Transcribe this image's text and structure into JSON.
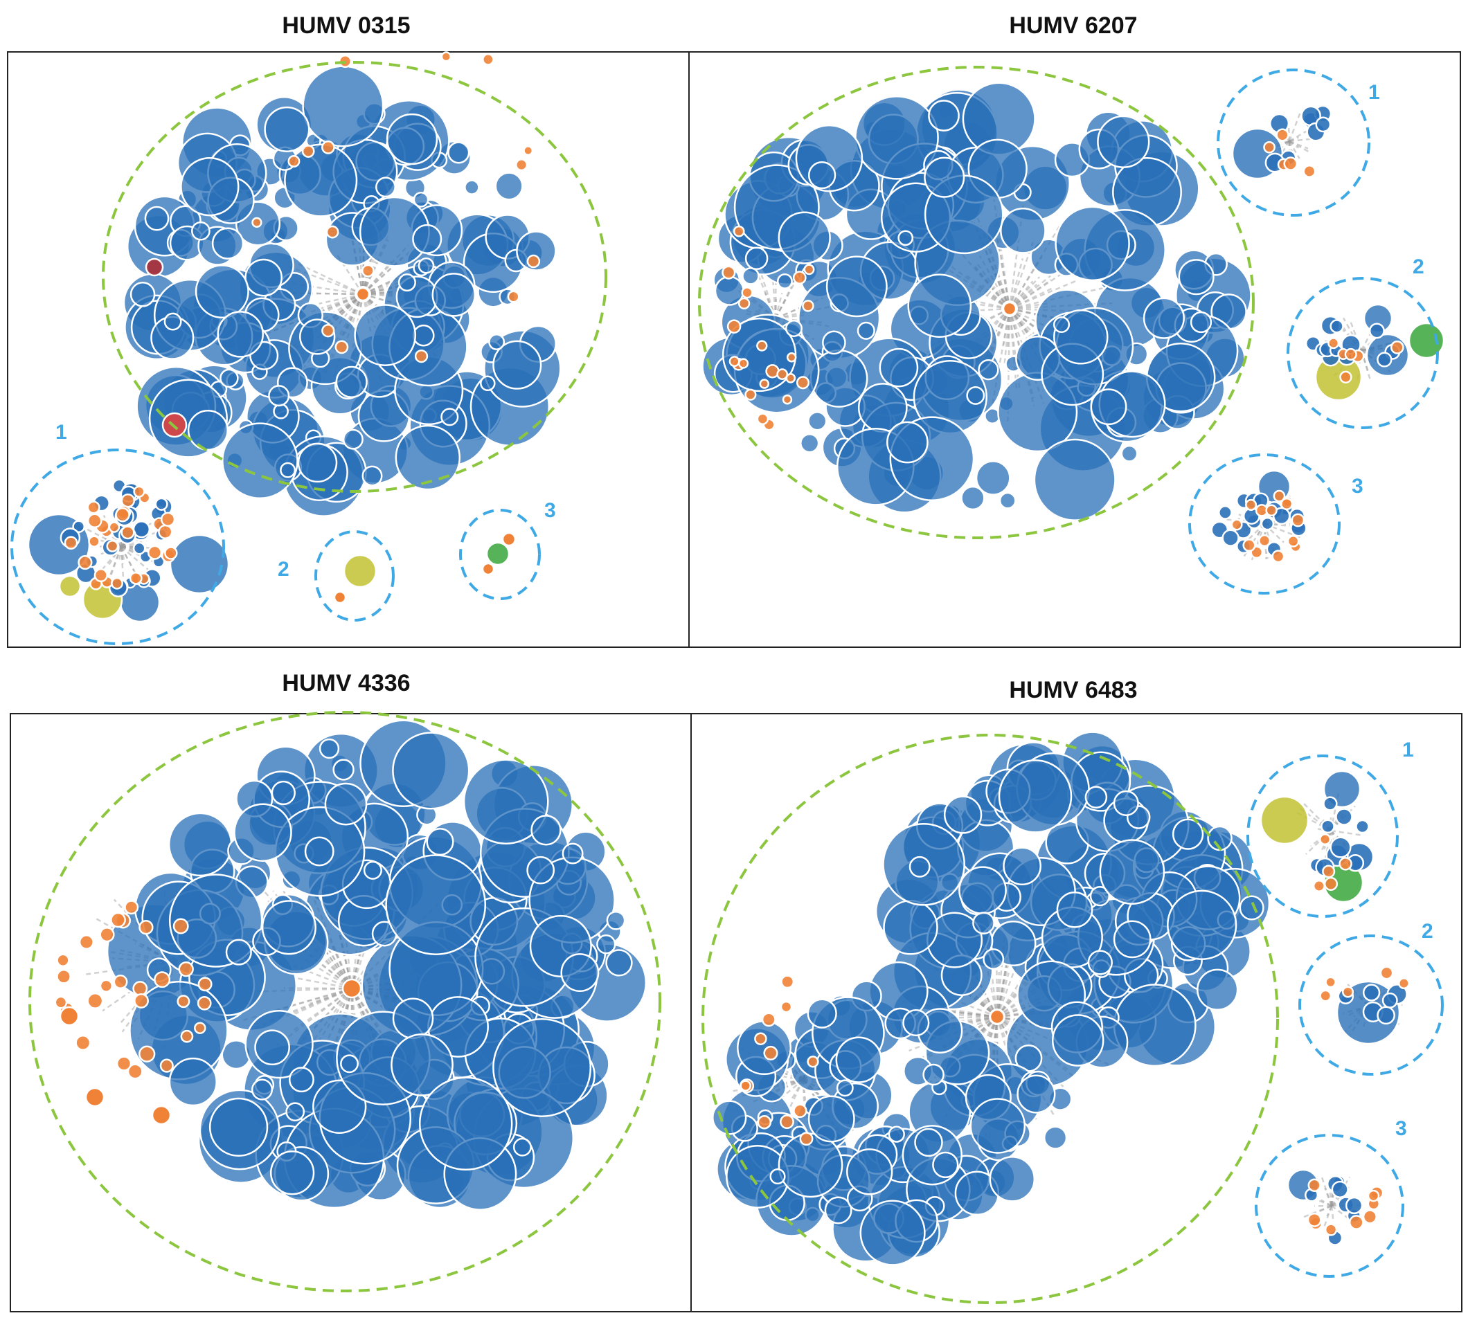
{
  "colors": {
    "node": "#2a70b8",
    "node_outline": "#ffffff",
    "hub": "#ef8236",
    "edge": "#9a9a9a",
    "yellow": "#c2c233",
    "green": "#3aa63a",
    "red": "#d64545",
    "darkred": "#a8323c",
    "main_cluster_outline": "#8cc63f",
    "sub_cluster_outline": "#3fa9e6"
  },
  "panels": [
    {
      "id": "p0315",
      "title": "HUMV 0315",
      "subclusters": [
        "1",
        "2",
        "3"
      ]
    },
    {
      "id": "p6207",
      "title": "HUMV 6207",
      "subclusters": [
        "1",
        "2",
        "3"
      ]
    },
    {
      "id": "p4336",
      "title": "HUMV 4336",
      "subclusters": []
    },
    {
      "id": "p6483",
      "title": "HUMV 6483",
      "subclusters": [
        "1",
        "2",
        "3"
      ]
    }
  ]
}
